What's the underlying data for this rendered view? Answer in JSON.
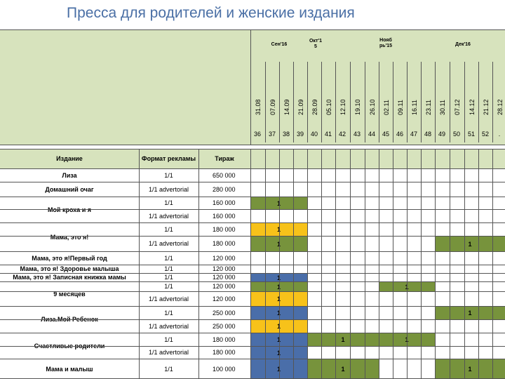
{
  "title": "Пресса для родителей и женские издания",
  "months": [
    {
      "label": "Сен'16"
    },
    {
      "label": "Окт'1\n5"
    },
    {
      "label": "Нояб\nрь'15"
    },
    {
      "label": "Дек'16"
    }
  ],
  "dates": [
    "31.08",
    "07.09",
    "14.09",
    "21.09",
    "28.09",
    "05.10",
    "12.10",
    "19.10",
    "26.10",
    "02.11",
    "09.11",
    "16.11",
    "23.11",
    "30.11",
    "07.12",
    "14.12",
    "21.12",
    "28.12"
  ],
  "weeks": [
    "36",
    "37",
    "38",
    "39",
    "40",
    "41",
    "42",
    "43",
    "44",
    "45",
    "46",
    "47",
    "48",
    "49",
    "50",
    "51",
    "52",
    "."
  ],
  "headers": {
    "publication": "Издание",
    "format": "Формат рекламы",
    "circulation": "Тираж"
  },
  "rows": [
    {
      "name": "Лиза",
      "format": "1/1",
      "circulation": "650 000"
    },
    {
      "name": "Домашний  очаг",
      "format": "1/1 advertorial",
      "circulation": "280 000"
    },
    {
      "name": "Мой кроха и я",
      "format": "1/1",
      "circulation": "160 000"
    },
    {
      "name": "",
      "format": "1/1 advertorial",
      "circulation": "160 000"
    },
    {
      "name": "Мама,  это я!",
      "format": "1/1",
      "circulation": "180 000"
    },
    {
      "name": "",
      "format": "1/1 advertorial",
      "circulation": "180 000"
    },
    {
      "name": "Мама, это я!Первый год",
      "format": "1/1",
      "circulation": "120 000"
    },
    {
      "name": "Мама,  это я! Здоровье малыша",
      "format": "1/1",
      "circulation": "120 000"
    },
    {
      "name": "Мама, это я!  Записная книжка мамы",
      "format": "1/1",
      "circulation": "120 000"
    },
    {
      "name": "9 месяцев",
      "format": "1/1",
      "circulation": "120 000"
    },
    {
      "name": "",
      "format": "1/1 advertorial",
      "circulation": "120 000"
    },
    {
      "name": "Лиза.Мой Ребенок",
      "format": "1/1",
      "circulation": "250 000"
    },
    {
      "name": "",
      "format": "1/1 advertorial",
      "circulation": "250 000"
    },
    {
      "name": "Счастливые родители",
      "format": "1/1",
      "circulation": "180 000"
    },
    {
      "name": "",
      "format": "1/1 advertorial",
      "circulation": "180 000"
    },
    {
      "name": "Мама и малыш",
      "format": "1/1",
      "circulation": "100 000"
    }
  ],
  "placements": [
    {
      "row": 2,
      "from": 0,
      "to": 3,
      "color": "green",
      "label": "1"
    },
    {
      "row": 4,
      "from": 0,
      "to": 3,
      "color": "yellow",
      "label": "1"
    },
    {
      "row": 5,
      "from": 0,
      "to": 3,
      "color": "green",
      "label": "1"
    },
    {
      "row": 5,
      "from": 13,
      "to": 17,
      "color": "green",
      "label": "1"
    },
    {
      "row": 8,
      "from": 0,
      "to": 3,
      "color": "blue",
      "label": "1"
    },
    {
      "row": 9,
      "from": 0,
      "to": 3,
      "color": "green",
      "label": "1"
    },
    {
      "row": 9,
      "from": 9,
      "to": 12,
      "color": "green",
      "label": "1"
    },
    {
      "row": 10,
      "from": 0,
      "to": 3,
      "color": "yellow",
      "label": "1"
    },
    {
      "row": 11,
      "from": 0,
      "to": 3,
      "color": "blue",
      "label": "1"
    },
    {
      "row": 11,
      "from": 13,
      "to": 17,
      "color": "green",
      "label": "1"
    },
    {
      "row": 12,
      "from": 0,
      "to": 3,
      "color": "yellow",
      "label": "1"
    },
    {
      "row": 13,
      "from": 0,
      "to": 3,
      "color": "blue",
      "label": "1"
    },
    {
      "row": 13,
      "from": 4,
      "to": 8,
      "color": "green",
      "label": "1"
    },
    {
      "row": 13,
      "from": 9,
      "to": 12,
      "color": "green",
      "label": "1"
    },
    {
      "row": 14,
      "from": 0,
      "to": 3,
      "color": "blue",
      "label": "1"
    },
    {
      "row": 15,
      "from": 0,
      "to": 3,
      "color": "blue",
      "label": "1"
    },
    {
      "row": 15,
      "from": 4,
      "to": 8,
      "color": "green",
      "label": "1"
    },
    {
      "row": 15,
      "from": 13,
      "to": 17,
      "color": "green",
      "label": "1"
    }
  ],
  "colors": {
    "blue": "#4a6ea9",
    "green": "#77933c",
    "yellow": "#f7c21a",
    "header_band": "#d7e3bd"
  }
}
